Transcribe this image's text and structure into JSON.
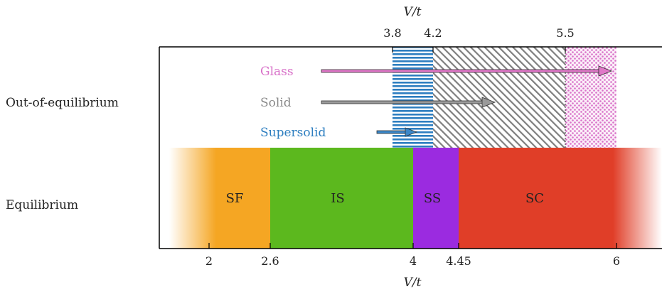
{
  "rows": {
    "top": "Out-of-equilibrium",
    "bottom": "Equilibrium"
  },
  "axes": {
    "bottom_title": "V/t",
    "top_title": "V/t",
    "bottom_ticks": [
      "2",
      "2.6",
      "4",
      "4.45",
      "6"
    ],
    "top_ticks": [
      "3.8",
      "4.2",
      "5.5"
    ]
  },
  "chart_data": {
    "type": "diagram",
    "x_range": [
      1,
      6.4
    ],
    "bottom_tick_values": [
      2,
      2.6,
      4,
      4.45,
      6
    ],
    "top_tick_values": [
      3.8,
      4.2,
      5.5
    ],
    "equilibrium_phases": [
      {
        "label": "SF",
        "from": 1,
        "to": 2.6,
        "color": "#f5a623"
      },
      {
        "label": "IS",
        "from": 2.6,
        "to": 4,
        "color": "#5cb81e"
      },
      {
        "label": "SS",
        "from": 4,
        "to": 4.45,
        "color": "#9b2be0"
      },
      {
        "label": "SC",
        "from": 4.45,
        "to": 6.4,
        "color": "#e03e28"
      }
    ],
    "out_of_equilibrium": [
      {
        "label": "Supersolid",
        "from": 3.8,
        "to": 4.2,
        "pattern": "horizontal-lines",
        "color": "#2d7ec0"
      },
      {
        "label": "Solid",
        "from": 4.2,
        "to": 5.5,
        "pattern": "diagonal-hatch",
        "color": "#808080"
      },
      {
        "label": "Glass",
        "from": 5.5,
        "to": 6.0,
        "pattern": "dots",
        "color": "#d870c8"
      }
    ],
    "arrows": [
      {
        "label": "Glass",
        "color": "#e078c8",
        "to": 6.0
      },
      {
        "label": "Solid",
        "color": "#9a9a9a",
        "to": 4.8
      },
      {
        "label": "Supersolid",
        "color": "#3b87c8",
        "to": 4.05
      }
    ]
  }
}
